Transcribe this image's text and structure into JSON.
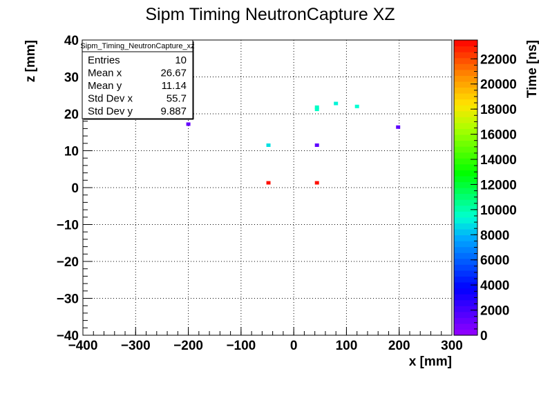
{
  "chart_data": {
    "type": "heatmap",
    "title": "Sipm Timing NeutronCapture XZ",
    "xlabel": "x [mm]",
    "ylabel": "z [mm]",
    "zlabel": "Time [ns]",
    "xlim": [
      -400,
      300
    ],
    "ylim": [
      -40,
      40
    ],
    "zlim": [
      0,
      23500
    ],
    "x_ticks": [
      -400,
      -300,
      -200,
      -100,
      0,
      100,
      200,
      300
    ],
    "x_tick_labels": [
      "−400",
      "−300",
      "−200",
      "−100",
      "0",
      "100",
      "200",
      "300"
    ],
    "y_ticks": [
      -40,
      -30,
      -20,
      -10,
      0,
      10,
      20,
      30,
      40
    ],
    "y_tick_labels": [
      "−40",
      "−30",
      "−20",
      "−10",
      "0",
      "10",
      "20",
      "30",
      "40"
    ],
    "z_ticks": [
      0,
      2000,
      4000,
      6000,
      8000,
      10000,
      12000,
      14000,
      16000,
      18000,
      20000,
      22000
    ],
    "z_tick_labels": [
      "0",
      "2000",
      "4000",
      "6000",
      "8000",
      "10000",
      "12000",
      "14000",
      "16000",
      "18000",
      "20000",
      "22000"
    ],
    "grid": true,
    "points": [
      {
        "x": -200,
        "y": 17.2,
        "t": 1200
      },
      {
        "x": -48,
        "y": 11.5,
        "t": 8800
      },
      {
        "x": -48,
        "y": 1.3,
        "t": 23200
      },
      {
        "x": 44,
        "y": 21.2,
        "t": 9600
      },
      {
        "x": 44,
        "y": 21.8,
        "t": 9600
      },
      {
        "x": 44,
        "y": 11.5,
        "t": 1400
      },
      {
        "x": 44,
        "y": 1.3,
        "t": 23200
      },
      {
        "x": 80,
        "y": 22.8,
        "t": 9200
      },
      {
        "x": 120,
        "y": 22.0,
        "t": 9400
      },
      {
        "x": 198,
        "y": 16.4,
        "t": 1400
      }
    ],
    "stats": {
      "name": "Sipm_Timing_NeutronCapture_xz",
      "rows": [
        {
          "label": "Entries",
          "value": "10"
        },
        {
          "label": "Mean x",
          "value": "26.67"
        },
        {
          "label": "Mean y",
          "value": "11.14"
        },
        {
          "label": "Std Dev x",
          "value": "55.7"
        },
        {
          "label": "Std Dev y",
          "value": "9.887"
        }
      ]
    }
  }
}
